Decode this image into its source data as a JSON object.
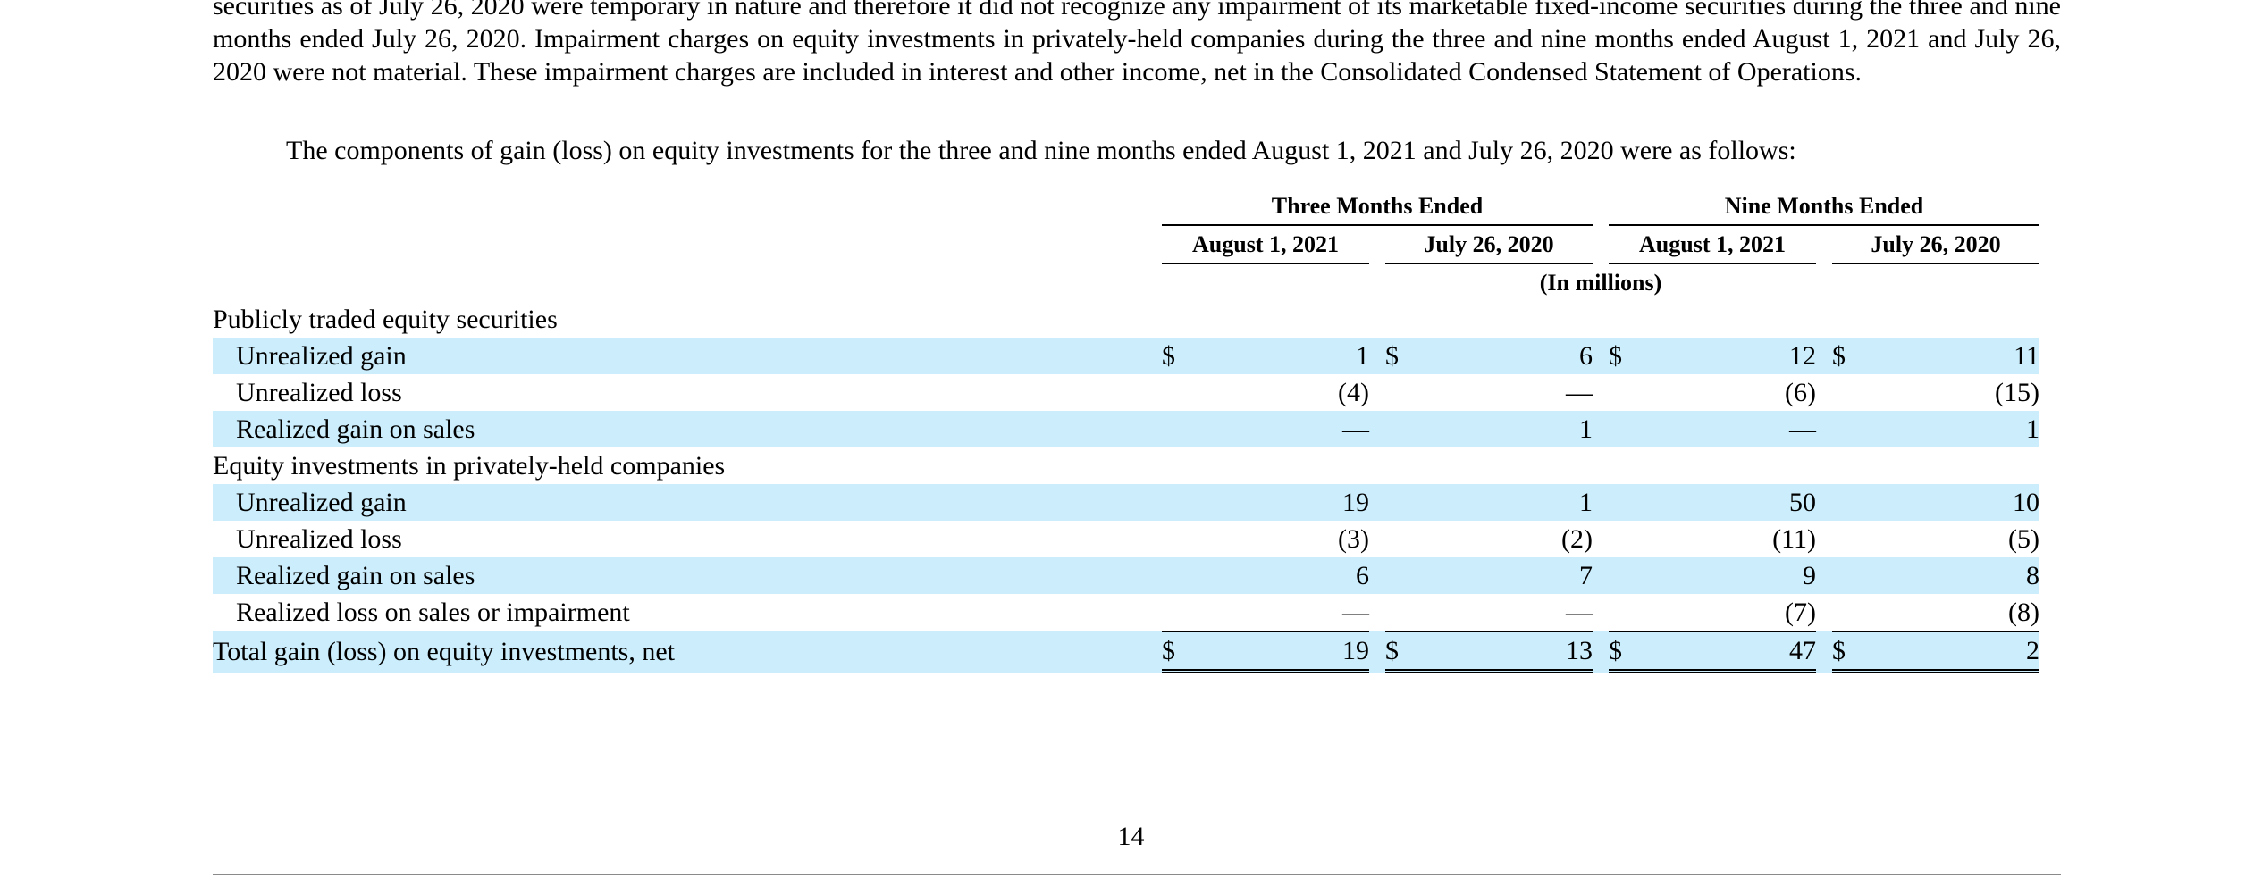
{
  "paragraphs": {
    "p1": "securities as of July 26, 2020 were temporary in nature and therefore it did not recognize any impairment of its marketable fixed-income securities during the three and nine months ended July 26, 2020. Impairment charges on equity investments in privately-held companies during the three and nine months ended August 1, 2021 and July 26, 2020 were not material. These impairment charges are included in interest and other income, net in the Consolidated Condensed Statement of Operations.",
    "p2": "The components of gain (loss) on equity investments for the three and nine months ended August 1, 2021 and July 26, 2020 were as follows:"
  },
  "table": {
    "period_headers": [
      "Three Months Ended",
      "Nine Months Ended"
    ],
    "date_headers": [
      "August 1, 2021",
      "July 26, 2020",
      "August 1, 2021",
      "July 26, 2020"
    ],
    "units": "(In millions)",
    "currency_symbol": "$",
    "sections": [
      {
        "title": "Publicly traded equity securities",
        "rows": [
          {
            "label": "Unrealized gain",
            "values": [
              "1",
              "6",
              "12",
              "11"
            ]
          },
          {
            "label": "Unrealized loss",
            "values": [
              "(4)",
              "—",
              "(6)",
              "(15)"
            ]
          },
          {
            "label": "Realized gain on sales",
            "values": [
              "—",
              "1",
              "—",
              "1"
            ]
          }
        ]
      },
      {
        "title": "Equity investments in privately-held companies",
        "rows": [
          {
            "label": "Unrealized gain",
            "values": [
              "19",
              "1",
              "50",
              "10"
            ]
          },
          {
            "label": "Unrealized loss",
            "values": [
              "(3)",
              "(2)",
              "(11)",
              "(5)"
            ]
          },
          {
            "label": "Realized gain on sales",
            "values": [
              "6",
              "7",
              "9",
              "8"
            ]
          },
          {
            "label": "Realized loss on sales or impairment",
            "values": [
              "—",
              "—",
              "(7)",
              "(8)"
            ]
          }
        ]
      }
    ],
    "total": {
      "label": "Total gain (loss) on equity investments, net",
      "values": [
        "19",
        "13",
        "47",
        "2"
      ]
    }
  },
  "page_number": "14",
  "colors": {
    "row_shade": "#cceefc"
  }
}
